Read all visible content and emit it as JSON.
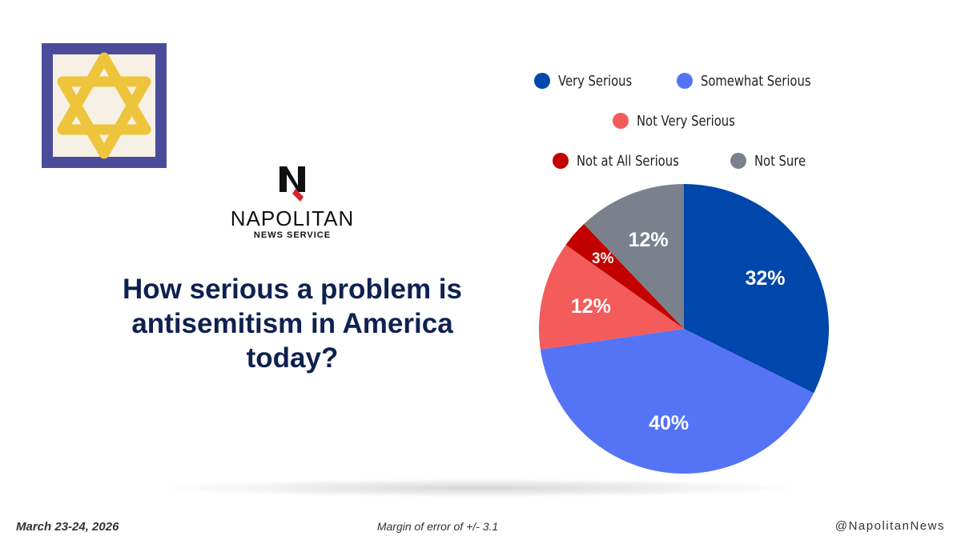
{
  "question": {
    "line1": "How serious a problem is",
    "line2": "antisemitism in America",
    "line3": "today?"
  },
  "brand": {
    "name": "NAPOLITAN",
    "subname": "NEWS SERVICE"
  },
  "footer": {
    "date": "March 23-24, 2026",
    "margin": "Margin of error of +/- 3.1",
    "handle": "@NapolitanNews"
  },
  "colors": {
    "very_serious": "#0047ab",
    "somewhat_serious": "#5573f5",
    "not_very_serious": "#f45b5b",
    "not_at_all_serious": "#c20000",
    "not_sure": "#7b818c",
    "title": "#0f2150",
    "star": "#efc43d",
    "star_border": "#4a4c9a"
  },
  "chart_data": {
    "type": "pie",
    "title": "How serious a problem is antisemitism in America today?",
    "categories": [
      "Very Serious",
      "Somewhat Serious",
      "Not Very Serious",
      "Not at All Serious",
      "Not Sure"
    ],
    "values": [
      32,
      40,
      12,
      3,
      12
    ],
    "labels": [
      "32%",
      "40%",
      "12%",
      "3%",
      "12%"
    ],
    "legend_rows": [
      [
        "Very Serious",
        "Somewhat Serious"
      ],
      [
        "Not Very Serious"
      ],
      [
        "Not at All Serious",
        "Not Sure"
      ]
    ],
    "legend_position": "top"
  }
}
